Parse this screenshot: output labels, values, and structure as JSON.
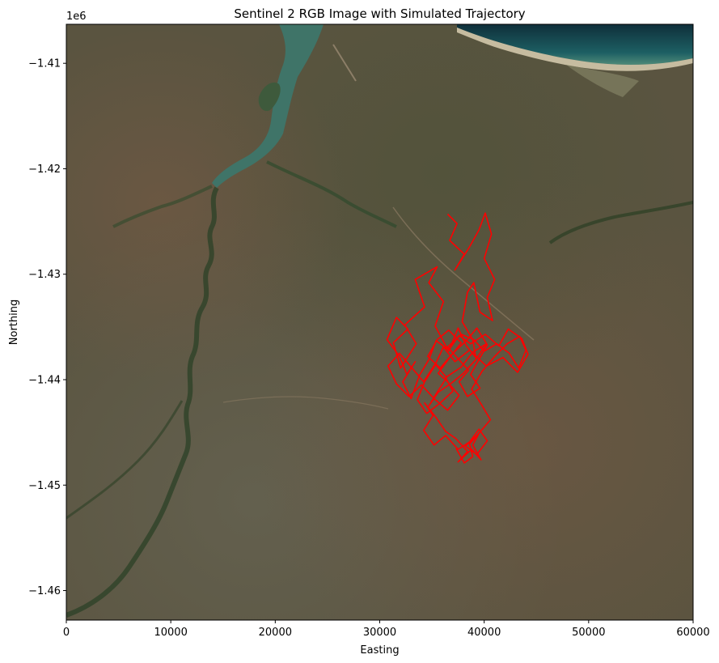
{
  "chart_data": {
    "type": "line",
    "title": "Sentinel 2 RGB Image with Simulated Trajectory",
    "xlabel": "Easting",
    "ylabel": "Northing",
    "y_offset_label": "1e6",
    "xlim": [
      0,
      60000
    ],
    "ylim": [
      -1.4628,
      -1.4063
    ],
    "x_ticks": [
      0,
      10000,
      20000,
      30000,
      40000,
      50000,
      60000
    ],
    "x_tick_labels": [
      "0",
      "10000",
      "20000",
      "30000",
      "40000",
      "50000",
      "60000"
    ],
    "y_ticks": [
      -1.46,
      -1.45,
      -1.44,
      -1.43,
      -1.42,
      -1.41
    ],
    "y_tick_labels": [
      "−1.46",
      "−1.45",
      "−1.44",
      "−1.43",
      "−1.42",
      "−1.41"
    ],
    "grid": false,
    "background": "satellite RGB image (savanna landscape, river estuary, coastline top-right)",
    "series": [
      {
        "color": "#ff0000",
        "x": [
          36500,
          37400,
          36700,
          38100,
          37200,
          38600,
          39500,
          40100,
          40700,
          40000,
          41000,
          40300,
          40800,
          39600,
          39000,
          38400,
          37900,
          38900,
          39200,
          38300,
          37500,
          36600,
          35300,
          36100,
          34700,
          35500,
          33400,
          34300,
          32400,
          33500,
          32000,
          31300,
          32700,
          31600,
          30700,
          31900,
          32600,
          33400,
          32200,
          33000,
          33800,
          34700,
          35400,
          36600,
          37600,
          38700,
          40100,
          41400,
          42300,
          43600,
          44200,
          43200,
          41800,
          40200,
          38600,
          37200,
          36100,
          35200,
          34300,
          33600,
          34500,
          35800,
          37000,
          36300,
          37800,
          38900,
          40200,
          39200,
          38000,
          36900,
          35600,
          34700,
          35500,
          36400,
          35300,
          34200,
          33100,
          31900,
          30800,
          31600,
          32800,
          34000,
          35200,
          36500,
          37600,
          36400,
          35600,
          36700,
          37800,
          36600,
          35500,
          34600,
          35800,
          37000,
          38300,
          39300,
          40300,
          39500,
          38700,
          39600,
          38400,
          37600,
          38500,
          37400,
          36500,
          37800,
          39000,
          40000,
          41200,
          42400,
          43300,
          44000,
          43400,
          42200,
          41000,
          39800,
          38800,
          39700,
          40600,
          39400,
          38200,
          39300,
          40300,
          39500,
          38600,
          37500,
          36300,
          35200,
          34200,
          35100,
          34300,
          35400,
          36300,
          37300,
          38400,
          37500,
          38800,
          39700,
          38900,
          39500,
          38600,
          38900,
          38100,
          37300
        ],
        "y": [
          -1.4243,
          -1.4252,
          -1.4268,
          -1.4281,
          -1.4296,
          -1.4274,
          -1.4258,
          -1.4242,
          -1.4262,
          -1.4285,
          -1.4305,
          -1.4322,
          -1.4344,
          -1.4336,
          -1.4308,
          -1.4317,
          -1.4345,
          -1.4362,
          -1.4379,
          -1.4368,
          -1.4351,
          -1.4373,
          -1.4349,
          -1.4326,
          -1.4308,
          -1.4293,
          -1.4305,
          -1.4331,
          -1.4348,
          -1.4366,
          -1.4389,
          -1.4365,
          -1.4352,
          -1.4341,
          -1.4362,
          -1.4378,
          -1.4395,
          -1.4383,
          -1.4402,
          -1.4418,
          -1.4396,
          -1.4381,
          -1.4363,
          -1.4372,
          -1.4358,
          -1.4366,
          -1.4357,
          -1.4368,
          -1.4352,
          -1.4361,
          -1.4376,
          -1.4393,
          -1.4379,
          -1.4387,
          -1.4372,
          -1.4383,
          -1.4369,
          -1.4388,
          -1.4402,
          -1.4419,
          -1.4432,
          -1.4422,
          -1.4411,
          -1.4398,
          -1.4388,
          -1.4374,
          -1.4366,
          -1.4381,
          -1.4394,
          -1.4403,
          -1.4412,
          -1.4425,
          -1.4412,
          -1.4398,
          -1.4385,
          -1.4402,
          -1.4389,
          -1.4375,
          -1.4387,
          -1.4404,
          -1.4416,
          -1.4405,
          -1.4418,
          -1.4429,
          -1.4415,
          -1.4401,
          -1.4394,
          -1.4379,
          -1.4365,
          -1.4353,
          -1.4362,
          -1.4378,
          -1.4389,
          -1.4375,
          -1.4363,
          -1.4351,
          -1.4367,
          -1.4381,
          -1.4395,
          -1.4408,
          -1.4416,
          -1.4402,
          -1.4391,
          -1.4379,
          -1.4369,
          -1.4357,
          -1.4362,
          -1.4373,
          -1.4366,
          -1.4375,
          -1.4389,
          -1.4372,
          -1.4359,
          -1.4366,
          -1.4378,
          -1.4392,
          -1.4409,
          -1.4423,
          -1.4438,
          -1.4452,
          -1.4463,
          -1.4471,
          -1.4458,
          -1.4447,
          -1.4459,
          -1.4466,
          -1.4453,
          -1.4462,
          -1.4448,
          -1.4434,
          -1.4422,
          -1.4436,
          -1.4449,
          -1.4456,
          -1.4468,
          -1.4478,
          -1.4466,
          -1.4476,
          -1.4462,
          -1.4451,
          -1.4461,
          -1.4473,
          -1.4479,
          -1.4465
        ]
      }
    ]
  }
}
